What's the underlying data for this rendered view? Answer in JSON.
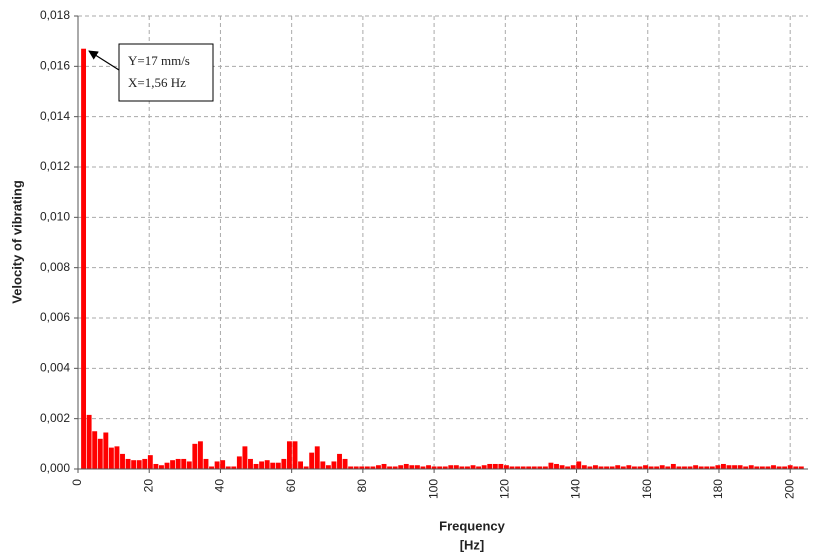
{
  "chart_data": {
    "type": "bar",
    "y_label": "Velocity of vibrating",
    "x_label": "Frequency",
    "x_unit": "[Hz]",
    "annotation": [
      "Y=17 mm/s",
      "X=1,56 Hz"
    ],
    "color": "#ff0000",
    "grid": true,
    "xlim": [
      0,
      205
    ],
    "ylim": [
      0,
      0.018
    ],
    "xticks": [
      0,
      20,
      40,
      60,
      80,
      100,
      120,
      140,
      160,
      180,
      200
    ],
    "yticks": [
      {
        "value": 0,
        "label": "0,000"
      },
      {
        "value": 0.002,
        "label": "0,002"
      },
      {
        "value": 0.004,
        "label": "0,004"
      },
      {
        "value": 0.006,
        "label": "0,006"
      },
      {
        "value": 0.008,
        "label": "0,008"
      },
      {
        "value": 0.01,
        "label": "0,010"
      },
      {
        "value": 0.012,
        "label": "0,012"
      },
      {
        "value": 0.014,
        "label": "0,014"
      },
      {
        "value": 0.016,
        "label": "0,016"
      },
      {
        "value": 0.018,
        "label": "0,018"
      }
    ],
    "x": [
      1.5625,
      3.125,
      4.6875,
      6.25,
      7.8125,
      9.375,
      10.9375,
      12.5,
      14.0625,
      15.625,
      17.1875,
      18.75,
      20.3125,
      21.875,
      23.4375,
      25,
      26.5625,
      28.125,
      29.6875,
      31.25,
      32.8125,
      34.375,
      35.9375,
      37.5,
      39.0625,
      40.625,
      42.1875,
      43.75,
      45.3125,
      46.875,
      48.4375,
      50,
      51.5625,
      53.125,
      54.6875,
      56.25,
      57.8125,
      59.375,
      60.9375,
      62.5,
      64.0625,
      65.625,
      67.1875,
      68.75,
      70.3125,
      71.875,
      73.4375,
      75,
      76.5625,
      78.125,
      79.6875,
      81.25,
      82.8125,
      84.375,
      85.9375,
      87.5,
      89.0625,
      90.625,
      92.1875,
      93.75,
      95.3125,
      96.875,
      98.4375,
      100,
      101.5625,
      103.125,
      104.6875,
      106.25,
      107.8125,
      109.375,
      110.9375,
      112.5,
      114.0625,
      115.625,
      117.1875,
      118.75,
      120.3125,
      121.875,
      123.4375,
      125,
      126.5625,
      128.125,
      129.6875,
      131.25,
      132.8125,
      134.375,
      135.9375,
      137.5,
      139.0625,
      140.625,
      142.1875,
      143.75,
      145.3125,
      146.875,
      148.4375,
      150,
      151.5625,
      153.125,
      154.6875,
      156.25,
      157.8125,
      159.375,
      160.9375,
      162.5,
      164.0625,
      165.625,
      167.1875,
      168.75,
      170.3125,
      171.875,
      173.4375,
      175,
      176.5625,
      178.125,
      179.6875,
      181.25,
      182.8125,
      184.375,
      185.9375,
      187.5,
      189.0625,
      190.625,
      192.1875,
      193.75,
      195.3125,
      196.875,
      198.4375,
      200,
      201.5625,
      203.125
    ],
    "values": [
      0.0167,
      0.00215,
      0.0015,
      0.0012,
      0.00145,
      0.00085,
      0.0009,
      0.0006,
      0.0004,
      0.00035,
      0.00035,
      0.0004,
      0.00055,
      0.0002,
      0.00015,
      0.00025,
      0.00035,
      0.0004,
      0.0004,
      0.0003,
      0.001,
      0.0011,
      0.0004,
      0.0001,
      0.0003,
      0.00035,
      0.0001,
      0.0001,
      0.0005,
      0.0009,
      0.0004,
      0.0002,
      0.0003,
      0.00035,
      0.00025,
      0.00025,
      0.0004,
      0.0011,
      0.0011,
      0.0003,
      0.0001,
      0.00065,
      0.0009,
      0.0003,
      0.00015,
      0.0003,
      0.0006,
      0.0004,
      0.0001,
      0.0001,
      0.0001,
      0.0001,
      0.0001,
      0.00015,
      0.0002,
      0.0001,
      0.0001,
      0.00015,
      0.0002,
      0.00015,
      0.00015,
      0.0001,
      0.00015,
      0.0001,
      0.0001,
      0.0001,
      0.00015,
      0.00015,
      0.0001,
      0.0001,
      0.00015,
      0.0001,
      0.00015,
      0.0002,
      0.0002,
      0.0002,
      0.00015,
      0.0001,
      0.0001,
      0.0001,
      0.0001,
      0.0001,
      0.0001,
      0.0001,
      0.00025,
      0.0002,
      0.00015,
      0.0001,
      0.00015,
      0.0003,
      0.00015,
      0.0001,
      0.00015,
      0.0001,
      0.0001,
      0.0001,
      0.00015,
      0.0001,
      0.00015,
      0.0001,
      0.0001,
      0.00015,
      0.0001,
      0.0001,
      0.00015,
      0.0001,
      0.0002,
      0.0001,
      0.0001,
      0.0001,
      0.00015,
      0.0001,
      0.0001,
      0.0001,
      0.00015,
      0.0002,
      0.00015,
      0.00015,
      0.00015,
      0.0001,
      0.00015,
      0.0001,
      0.0001,
      0.0001,
      0.00015,
      0.0001,
      0.0001,
      0.00015,
      0.0001,
      0.0001
    ]
  }
}
